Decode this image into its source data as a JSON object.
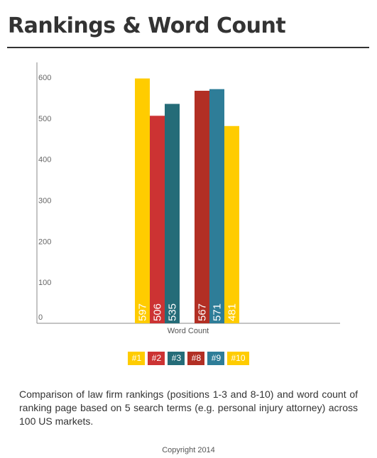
{
  "header": {
    "title": "Rankings & Word Count"
  },
  "chart_data": {
    "type": "bar",
    "title": "Rankings & Word Count",
    "xlabel": "Word Count",
    "ylabel": "",
    "ylim": [
      0,
      650
    ],
    "yticks": [
      0,
      100,
      200,
      300,
      400,
      500,
      600
    ],
    "grid": false,
    "legend_position": "bottom",
    "series": [
      {
        "name": "#1",
        "values": [
          597
        ],
        "color": "#FFCC00"
      },
      {
        "name": "#2",
        "values": [
          506
        ],
        "color": "#CC3333"
      },
      {
        "name": "#3",
        "values": [
          535
        ],
        "color": "#256C78"
      },
      {
        "name": "#8",
        "values": [
          567
        ],
        "color": "#B22F24"
      },
      {
        "name": "#9",
        "values": [
          571
        ],
        "color": "#2E7D98"
      },
      {
        "name": "#10",
        "values": [
          481
        ],
        "color": "#FFCC00"
      }
    ],
    "data_labels": [
      "597",
      "506",
      "535",
      "567",
      "571",
      "481"
    ]
  },
  "legend": [
    {
      "label": "#1",
      "color": "#FFCC00"
    },
    {
      "label": "#2",
      "color": "#CC3333"
    },
    {
      "label": "#3",
      "color": "#256C78"
    },
    {
      "label": "#8",
      "color": "#B22F24"
    },
    {
      "label": "#9",
      "color": "#2E7D98"
    },
    {
      "label": "#10",
      "color": "#FFCC00"
    }
  ],
  "caption": "Comparison of law firm rankings (positions 1-3 and 8-10) and word count of ranking page based on 5 search terms (e.g. personal injury attorney) across 100 US markets.",
  "footer": {
    "copyright": "Copyright 2014"
  }
}
